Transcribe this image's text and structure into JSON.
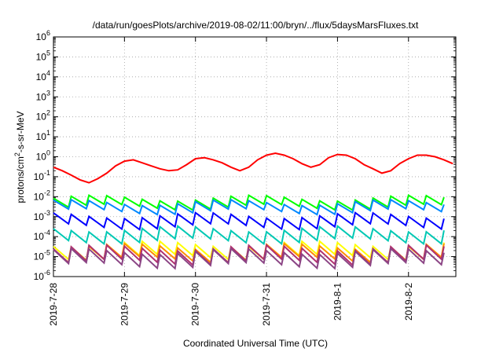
{
  "chart_data": {
    "type": "line",
    "title": "/data/run/goesPlots/archive/2019-08-02/11:00/bryn/../flux/5daysMarsFluxes.txt",
    "xlabel": "Coordinated Universal Time (UTC)",
    "ylabel_parts": {
      "pre": "protons/cm",
      "sup": "2",
      "post": "-s-sr-MeV"
    },
    "y_scale": "log",
    "ylim": [
      1e-06,
      1000000.0
    ],
    "y_tick_exponents": [
      -6,
      -5,
      -4,
      -3,
      -2,
      -1,
      0,
      1,
      2,
      3,
      4,
      5,
      6
    ],
    "y_tick_base": "10",
    "x_unit": "day",
    "xlim": [
      "2019-07-28T00:00",
      "2019-08-02T16:00"
    ],
    "x_tick_labels": [
      "2019-7-28",
      "2019-7-29",
      "2019-7-30",
      "2019-7-31",
      "2019-8-1",
      "2019-8-2"
    ],
    "grid": true,
    "legend": "none",
    "series": [
      {
        "color": "#ff0000",
        "x": [
          "2019-07-28T00:00",
          "2019-07-28T03:00",
          "2019-07-28T06:00",
          "2019-07-28T09:00",
          "2019-07-28T12:00",
          "2019-07-28T15:00",
          "2019-07-28T18:00",
          "2019-07-28T21:00",
          "2019-07-29T00:00",
          "2019-07-29T03:00",
          "2019-07-29T06:00",
          "2019-07-29T09:00",
          "2019-07-29T12:00",
          "2019-07-29T15:00",
          "2019-07-29T18:00",
          "2019-07-29T21:00",
          "2019-07-30T00:00",
          "2019-07-30T03:00",
          "2019-07-30T06:00",
          "2019-07-30T09:00",
          "2019-07-30T12:00",
          "2019-07-30T15:00",
          "2019-07-30T18:00",
          "2019-07-30T21:00",
          "2019-07-31T00:00",
          "2019-07-31T03:00",
          "2019-07-31T06:00",
          "2019-07-31T09:00",
          "2019-07-31T12:00",
          "2019-07-31T15:00",
          "2019-07-31T18:00",
          "2019-07-31T21:00",
          "2019-08-01T00:00",
          "2019-08-01T03:00",
          "2019-08-01T06:00",
          "2019-08-01T09:00",
          "2019-08-01T12:00",
          "2019-08-01T15:00",
          "2019-08-01T18:00",
          "2019-08-01T21:00",
          "2019-08-02T00:00",
          "2019-08-02T03:00",
          "2019-08-02T06:00",
          "2019-08-02T09:00",
          "2019-08-02T12:00",
          "2019-08-02T15:00"
        ],
        "values": [
          0.3,
          0.2,
          0.12,
          0.07,
          0.05,
          0.08,
          0.15,
          0.35,
          0.6,
          0.7,
          0.5,
          0.35,
          0.25,
          0.2,
          0.22,
          0.4,
          0.8,
          0.9,
          0.7,
          0.5,
          0.3,
          0.2,
          0.3,
          0.7,
          1.2,
          1.5,
          1.2,
          0.8,
          0.45,
          0.3,
          0.4,
          0.9,
          1.3,
          1.2,
          0.8,
          0.4,
          0.25,
          0.15,
          0.2,
          0.45,
          0.8,
          1.2,
          1.2,
          1.0,
          0.7,
          0.45
        ]
      }
    ],
    "sawtooth_bands": [
      {
        "color": "#00ff00",
        "mean": 0.005,
        "amplitude_decades": 0.45
      },
      {
        "color": "#0088ff",
        "mean": 0.003,
        "amplitude_decades": 0.45
      },
      {
        "color": "#0000ff",
        "mean": 0.0006,
        "amplitude_decades": 0.55
      },
      {
        "color": "#00c8b4",
        "mean": 0.00012,
        "amplitude_decades": 0.6
      },
      {
        "color": "#ffff00",
        "mean": 2e-05,
        "amplitude_decades": 0.65
      },
      {
        "color": "#ff8c00",
        "mean": 1.5e-05,
        "amplitude_decades": 0.65
      },
      {
        "color": "#b03070",
        "mean": 1.2e-05,
        "amplitude_decades": 0.7
      },
      {
        "color": "#8b4585",
        "mean": 8e-06,
        "amplitude_decades": 0.7
      }
    ],
    "sawtooth_period_hours": 6
  }
}
